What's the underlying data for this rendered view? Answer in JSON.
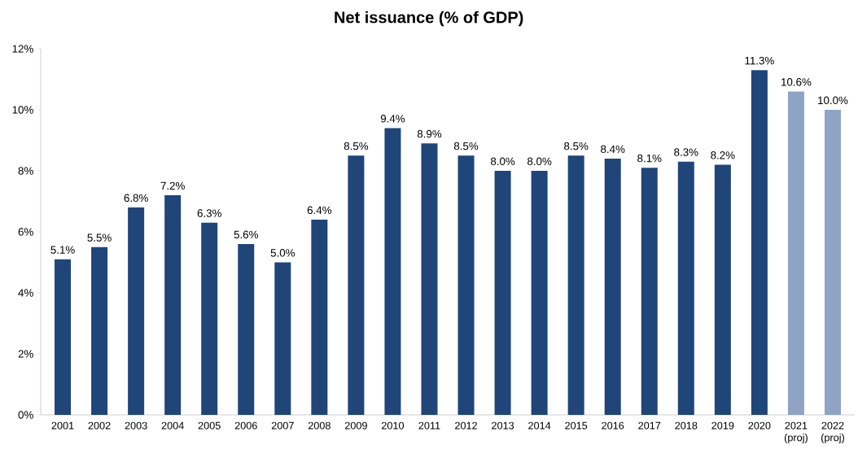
{
  "chart_data": {
    "type": "bar",
    "title": "Net issuance (% of GDP)",
    "categories": [
      "2001",
      "2002",
      "2003",
      "2004",
      "2005",
      "2006",
      "2007",
      "2008",
      "2009",
      "2010",
      "2011",
      "2012",
      "2013",
      "2014",
      "2015",
      "2016",
      "2017",
      "2018",
      "2019",
      "2020",
      "2021 (proj)",
      "2022 (proj)"
    ],
    "values": [
      5.1,
      5.5,
      6.8,
      7.2,
      6.3,
      5.6,
      5.0,
      6.4,
      8.5,
      9.4,
      8.9,
      8.5,
      8.0,
      8.0,
      8.5,
      8.4,
      8.1,
      8.3,
      8.2,
      11.3,
      10.6,
      10.0
    ],
    "value_labels": [
      "5.1%",
      "5.5%",
      "6.8%",
      "7.2%",
      "6.3%",
      "5.6%",
      "5.0%",
      "6.4%",
      "8.5%",
      "9.4%",
      "8.9%",
      "8.5%",
      "8.0%",
      "8.0%",
      "8.5%",
      "8.4%",
      "8.1%",
      "8.3%",
      "8.2%",
      "11.3%",
      "10.6%",
      "10.0%"
    ],
    "colors": [
      "#1f4579",
      "#1f4579",
      "#1f4579",
      "#1f4579",
      "#1f4579",
      "#1f4579",
      "#1f4579",
      "#1f4579",
      "#1f4579",
      "#1f4579",
      "#1f4579",
      "#1f4579",
      "#1f4579",
      "#1f4579",
      "#1f4579",
      "#1f4579",
      "#1f4579",
      "#1f4579",
      "#1f4579",
      "#1f4579",
      "#8fa3c4",
      "#8fa3c4"
    ],
    "ylim": [
      0,
      12
    ],
    "yticks": [
      {
        "value": 0,
        "label": "0%"
      },
      {
        "value": 2,
        "label": "2%"
      },
      {
        "value": 4,
        "label": "4%"
      },
      {
        "value": 6,
        "label": "6%"
      },
      {
        "value": 8,
        "label": "8%"
      },
      {
        "value": 10,
        "label": "10%"
      },
      {
        "value": 12,
        "label": "12%"
      }
    ],
    "grid": false
  }
}
